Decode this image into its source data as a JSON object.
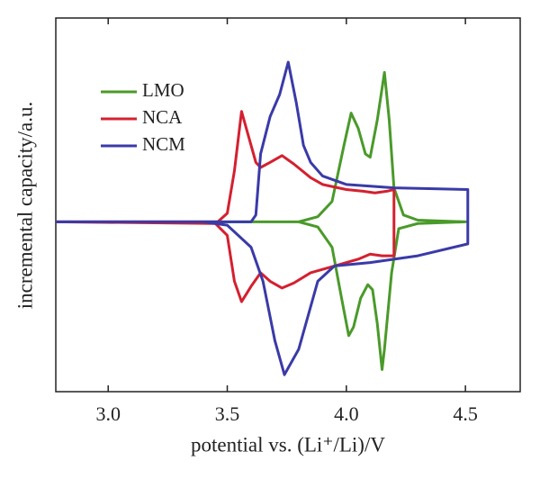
{
  "chart_data": {
    "type": "line",
    "xlabel": "potential vs. (Li⁺/Li)/V",
    "ylabel": "incremental capacity/a.u.",
    "xlim": [
      2.78,
      4.73
    ],
    "ylim": [
      -1.0,
      1.2
    ],
    "xticks": [
      {
        "value": 3.0,
        "label": "3.0"
      },
      3.5,
      {
        "value": 4.0,
        "label": "4.0"
      },
      4.5
    ],
    "legend": "upper-left",
    "series": [
      {
        "name": "LMO",
        "color": "#4a9a2a",
        "x": [
          2.78,
          3.8,
          3.88,
          3.94,
          3.99,
          4.02,
          4.05,
          4.08,
          4.1,
          4.13,
          4.16,
          4.18,
          4.2,
          4.24,
          4.3,
          4.5,
          4.5,
          4.3,
          4.22,
          4.19,
          4.16,
          4.15,
          4.13,
          4.11,
          4.09,
          4.06,
          4.03,
          4.01,
          3.98,
          3.94,
          3.88,
          3.8,
          2.78
        ],
        "values": [
          0,
          0,
          0.03,
          0.12,
          0.45,
          0.64,
          0.55,
          0.4,
          0.38,
          0.6,
          0.88,
          0.6,
          0.2,
          0.04,
          0.01,
          0,
          0,
          -0.01,
          -0.04,
          -0.3,
          -0.75,
          -0.87,
          -0.6,
          -0.4,
          -0.37,
          -0.45,
          -0.62,
          -0.67,
          -0.45,
          -0.15,
          -0.03,
          0,
          0
        ]
      },
      {
        "name": "NCA",
        "color": "#d42030",
        "x": [
          2.78,
          3.46,
          3.5,
          3.53,
          3.56,
          3.59,
          3.62,
          3.64,
          3.68,
          3.73,
          3.78,
          3.85,
          3.9,
          4.0,
          4.07,
          4.12,
          4.17,
          4.2,
          4.2,
          4.15,
          4.1,
          4.05,
          3.95,
          3.85,
          3.78,
          3.73,
          3.68,
          3.64,
          3.6,
          3.56,
          3.53,
          3.5,
          3.45,
          2.78
        ],
        "values": [
          0,
          0,
          0.05,
          0.3,
          0.65,
          0.5,
          0.35,
          0.32,
          0.35,
          0.39,
          0.34,
          0.26,
          0.22,
          0.19,
          0.18,
          0.17,
          0.18,
          0.19,
          -0.2,
          -0.2,
          -0.19,
          -0.22,
          -0.26,
          -0.3,
          -0.36,
          -0.39,
          -0.35,
          -0.3,
          -0.38,
          -0.47,
          -0.35,
          -0.08,
          -0.01,
          0
        ]
      },
      {
        "name": "NCM",
        "color": "#3a3aa8",
        "x": [
          2.78,
          3.6,
          3.62,
          3.64,
          3.68,
          3.72,
          3.756,
          3.79,
          3.82,
          3.85,
          3.9,
          4.0,
          4.2,
          4.51,
          4.51,
          4.3,
          4.2,
          4.1,
          3.95,
          3.88,
          3.84,
          3.8,
          3.74,
          3.7,
          3.65,
          3.6,
          3.5,
          3.4,
          2.78
        ],
        "values": [
          0,
          0,
          0.04,
          0.4,
          0.62,
          0.75,
          0.94,
          0.7,
          0.45,
          0.35,
          0.27,
          0.22,
          0.2,
          0.19,
          -0.13,
          -0.2,
          -0.22,
          -0.24,
          -0.26,
          -0.35,
          -0.55,
          -0.75,
          -0.9,
          -0.7,
          -0.35,
          -0.15,
          -0.02,
          0,
          0
        ]
      }
    ]
  }
}
